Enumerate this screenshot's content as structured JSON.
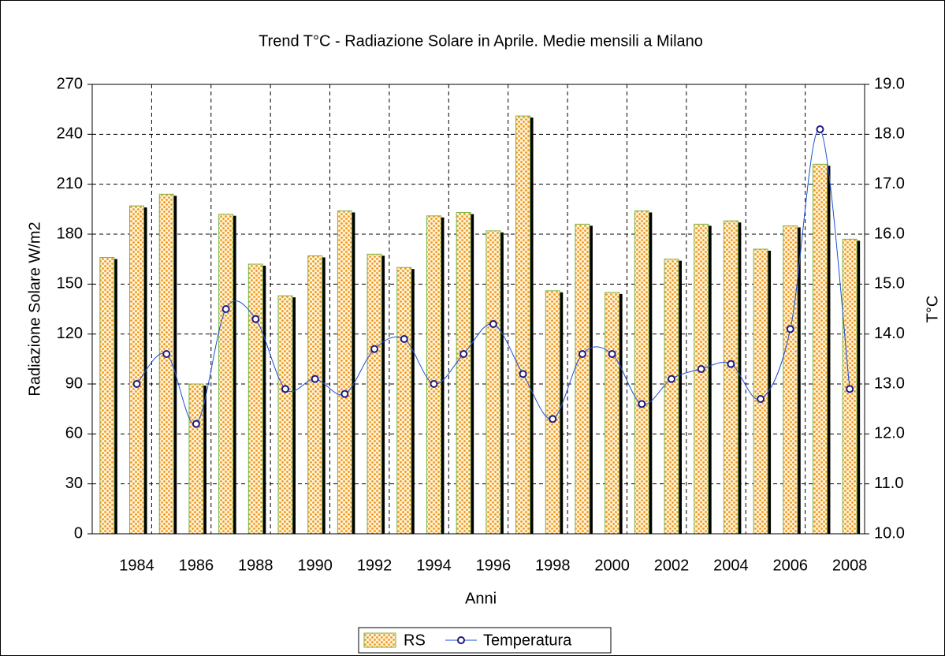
{
  "chart_data": {
    "type": "bar-line",
    "title": "Trend T°C -  Radiazione Solare in Aprile. Medie mensili a Milano",
    "x_label": "Anni",
    "y_label": "Radiazione Solare W/m2",
    "y2_label": "T°C",
    "categories": [
      null,
      "1984",
      null,
      "1986",
      null,
      "1988",
      null,
      "1990",
      null,
      "1992",
      null,
      "1994",
      null,
      "1996",
      null,
      "1998",
      null,
      "2000",
      null,
      "2002",
      null,
      "2004",
      null,
      "2006",
      null,
      "2008"
    ],
    "series": [
      {
        "name": "RS",
        "color": "#f5a94a",
        "values": [
          166,
          197,
          204,
          90,
          192,
          162,
          143,
          167,
          194,
          168,
          160,
          191,
          193,
          182,
          251,
          146,
          186,
          145,
          194,
          165,
          186,
          188,
          171,
          185,
          222,
          177
        ]
      },
      {
        "name": "Temperatura",
        "color": "#1a4fd6",
        "axis": "y2",
        "values": [
          null,
          13.0,
          13.6,
          12.2,
          14.5,
          14.3,
          12.9,
          13.1,
          12.8,
          13.7,
          13.9,
          13.0,
          13.6,
          14.2,
          13.2,
          12.3,
          13.6,
          13.6,
          12.6,
          13.1,
          13.3,
          13.4,
          12.7,
          14.1,
          18.1,
          12.9
        ]
      }
    ],
    "ylim": [
      0,
      270
    ],
    "yticks": [
      0,
      30,
      60,
      90,
      120,
      150,
      180,
      210,
      240,
      270
    ],
    "y2lim": [
      10,
      19
    ],
    "y2ticks": [
      {
        "value": 10,
        "label": "10.0"
      },
      {
        "value": 11,
        "label": "11.0"
      },
      {
        "value": 12,
        "label": "12.0"
      },
      {
        "value": 13,
        "label": "13.0"
      },
      {
        "value": 14,
        "label": "14.0"
      },
      {
        "value": 15,
        "label": "15.0"
      },
      {
        "value": 16,
        "label": "16.0"
      },
      {
        "value": 17,
        "label": "17.0"
      },
      {
        "value": 18,
        "label": "18.0"
      },
      {
        "value": 19,
        "label": "19.0"
      }
    ],
    "grid": true,
    "legend": "bottom"
  }
}
